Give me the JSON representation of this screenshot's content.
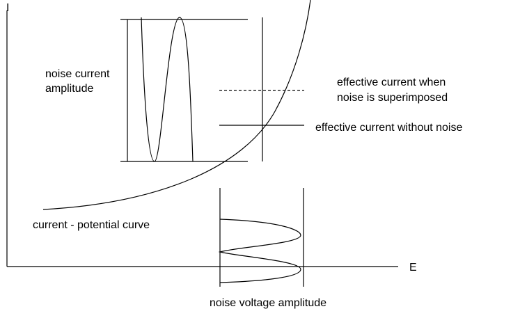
{
  "axes": {
    "y_label": "I",
    "x_label": "E"
  },
  "labels": {
    "noise_current_amplitude": [
      "noise current",
      "amplitude"
    ],
    "effective_current_noise": [
      "effective current when",
      "noise is superimposed"
    ],
    "effective_current_without_noise": "effective current without noise",
    "curve": "current - potential curve",
    "noise_voltage_amplitude": "noise voltage amplitude"
  }
}
